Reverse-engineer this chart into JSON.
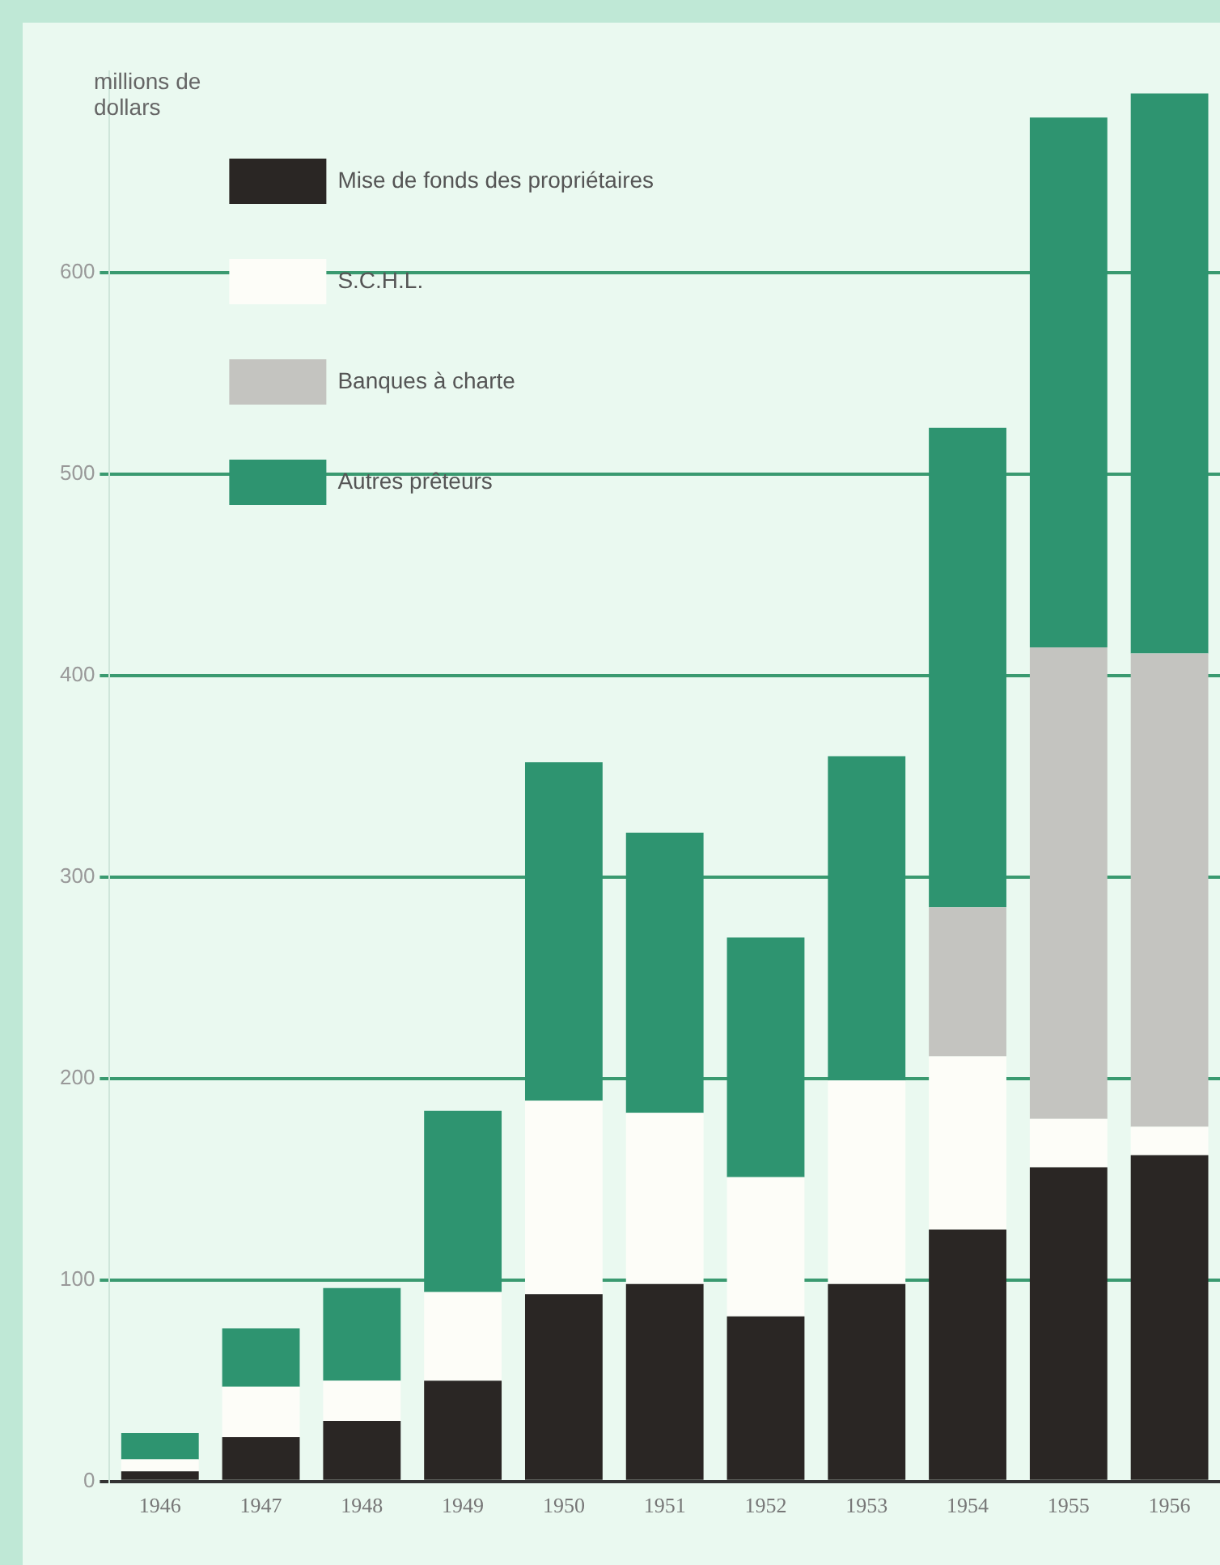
{
  "chart_data": {
    "type": "bar",
    "stacked": true,
    "ylabel": "millions de dollars",
    "categories": [
      "1946",
      "1947",
      "1948",
      "1949",
      "1950",
      "1951",
      "1952",
      "1953",
      "1954",
      "1955",
      "1956"
    ],
    "series": [
      {
        "name": "Mise de fonds des propriétaires",
        "color": "#2a2624",
        "values": [
          5,
          22,
          30,
          50,
          93,
          98,
          82,
          98,
          125,
          156,
          162
        ]
      },
      {
        "name": "S.C.H.L.",
        "color": "#fdfdf8",
        "values": [
          6,
          25,
          20,
          44,
          96,
          85,
          69,
          101,
          86,
          24,
          14
        ]
      },
      {
        "name": "Banques à charte",
        "color": "#c4c4c0",
        "values": [
          0,
          0,
          0,
          0,
          0,
          0,
          0,
          0,
          74,
          234,
          235
        ]
      },
      {
        "name": "Autres prêteurs",
        "color": "#2e9470",
        "values": [
          13,
          29,
          46,
          90,
          168,
          139,
          119,
          161,
          238,
          263,
          278
        ]
      }
    ],
    "ylim": [
      0,
      700
    ],
    "yticks": [
      0,
      100,
      200,
      300,
      400,
      500,
      600
    ],
    "grid": "y",
    "legend": "top left"
  }
}
